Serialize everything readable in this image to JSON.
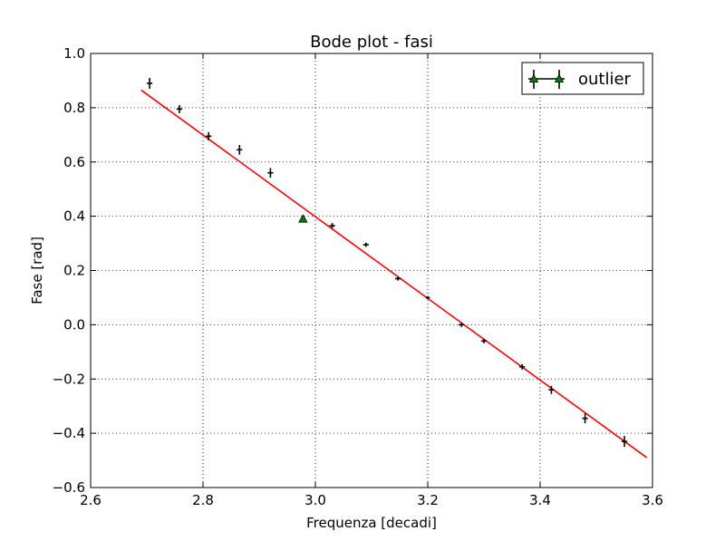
{
  "chart_data": {
    "type": "scatter",
    "title": "Bode plot - fasi",
    "xlabel": "Frequenza [decadi]",
    "ylabel": "Fase [rad]",
    "xlim": [
      2.6,
      3.6
    ],
    "ylim": [
      -0.6,
      1.0
    ],
    "xticks": [
      "2.6",
      "2.8",
      "3.0",
      "3.2",
      "3.4",
      "3.6"
    ],
    "yticks": [
      "−0.6",
      "−0.4",
      "−0.2",
      "0.0",
      "0.2",
      "0.4",
      "0.6",
      "0.8",
      "1.0"
    ],
    "grid": true,
    "legend_position": "top-right",
    "series": [
      {
        "kind": "errorbar",
        "color": "#000000",
        "points": [
          {
            "x": 2.705,
            "y": 0.89,
            "xerr": 0.005,
            "yerr": 0.02
          },
          {
            "x": 2.758,
            "y": 0.795,
            "xerr": 0.005,
            "yerr": 0.015
          },
          {
            "x": 2.81,
            "y": 0.695,
            "xerr": 0.005,
            "yerr": 0.015
          },
          {
            "x": 2.865,
            "y": 0.645,
            "xerr": 0.005,
            "yerr": 0.018
          },
          {
            "x": 2.92,
            "y": 0.56,
            "xerr": 0.005,
            "yerr": 0.018
          },
          {
            "x": 3.03,
            "y": 0.365,
            "xerr": 0.005,
            "yerr": 0.01
          },
          {
            "x": 3.09,
            "y": 0.295,
            "xerr": 0.005,
            "yerr": 0.008
          },
          {
            "x": 3.147,
            "y": 0.17,
            "xerr": 0.005,
            "yerr": 0.007
          },
          {
            "x": 3.2,
            "y": 0.1,
            "xerr": 0.004,
            "yerr": 0.006
          },
          {
            "x": 3.26,
            "y": 0.0,
            "xerr": 0.005,
            "yerr": 0.008
          },
          {
            "x": 3.3,
            "y": -0.06,
            "xerr": 0.005,
            "yerr": 0.008
          },
          {
            "x": 3.368,
            "y": -0.155,
            "xerr": 0.005,
            "yerr": 0.01
          },
          {
            "x": 3.42,
            "y": -0.24,
            "xerr": 0.005,
            "yerr": 0.015
          },
          {
            "x": 3.48,
            "y": -0.345,
            "xerr": 0.005,
            "yerr": 0.018
          },
          {
            "x": 3.55,
            "y": -0.43,
            "xerr": 0.005,
            "yerr": 0.02
          }
        ]
      },
      {
        "name": "outlier",
        "kind": "errorbar-marker",
        "marker": "triangle",
        "color": "#007f00",
        "points": [
          {
            "x": 2.978,
            "y": 0.39,
            "xerr": 0.004,
            "yerr": 0.01
          }
        ]
      },
      {
        "kind": "fit-line",
        "color": "#ff0000",
        "points": [
          {
            "x": 2.69,
            "y": 0.865
          },
          {
            "x": 3.59,
            "y": -0.49
          }
        ]
      }
    ]
  }
}
